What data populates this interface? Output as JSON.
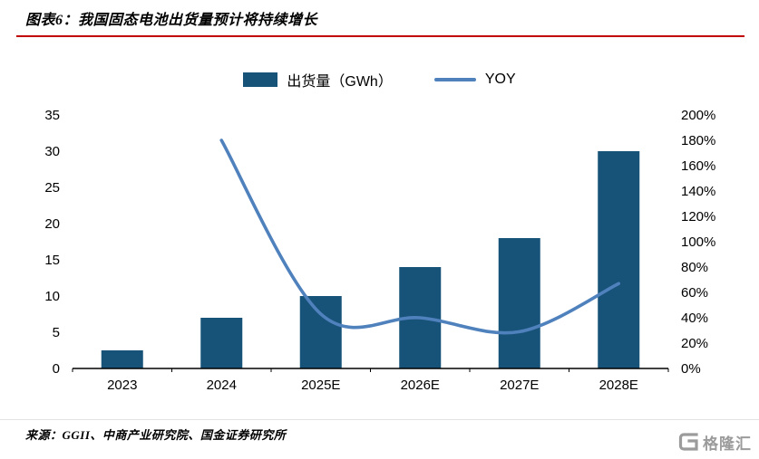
{
  "header": {
    "title": "图表6：我国固态电池出货量预计将持续增长"
  },
  "legend": {
    "bar_label": "出货量（GWh）",
    "line_label": "YOY"
  },
  "chart_data": {
    "type": "bar+line combo",
    "categories": [
      "2023",
      "2024",
      "2025E",
      "2026E",
      "2027E",
      "2028E"
    ],
    "series": [
      {
        "name": "出货量（GWh）",
        "type": "bar",
        "axis": "left",
        "values": [
          2.5,
          7,
          10,
          14,
          18,
          30
        ],
        "color": "#175279"
      },
      {
        "name": "YOY",
        "type": "line",
        "axis": "right",
        "unit": "%",
        "values": [
          null,
          180,
          43,
          40,
          29,
          67
        ],
        "color": "#4f81bd"
      }
    ],
    "left_axis": {
      "min": 0,
      "max": 35,
      "ticks": [
        0,
        5,
        10,
        15,
        20,
        25,
        30,
        35
      ]
    },
    "right_axis": {
      "min": 0,
      "max": 200,
      "unit": "%",
      "ticks": [
        0,
        20,
        40,
        60,
        80,
        100,
        120,
        140,
        160,
        180,
        200
      ]
    },
    "grid": false,
    "legend_position": "top"
  },
  "footer": {
    "source": "来源：GGII、中商产业研究院、国金证券研究所",
    "logo_text": "格隆汇"
  },
  "colors": {
    "bar": "#175279",
    "line": "#4f81bd",
    "title_rule": "#c00000",
    "logo_gray": "#9b9b9b"
  }
}
